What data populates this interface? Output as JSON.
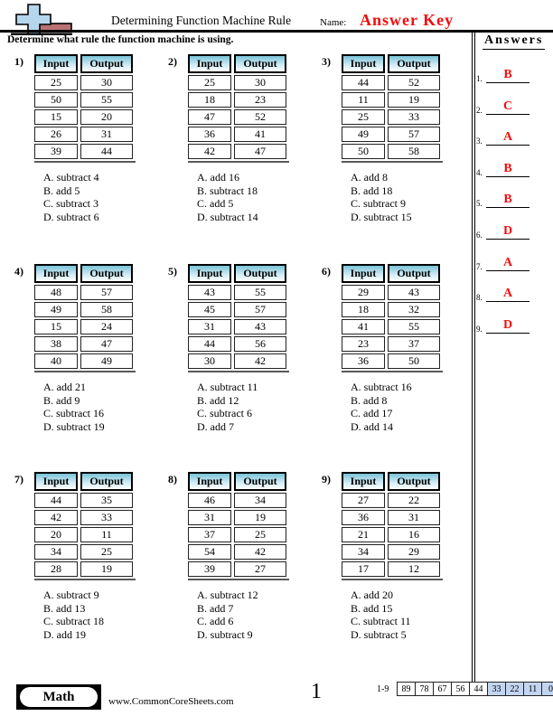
{
  "header": {
    "title": "Determining Function Machine Rule",
    "name_label": "Name:",
    "answer_key_label": "Answer Key",
    "instruction": "Determine what rule the function machine is using."
  },
  "answers_panel": {
    "title": "Answers",
    "items": [
      {
        "num": "1.",
        "letter": "B"
      },
      {
        "num": "2.",
        "letter": "C"
      },
      {
        "num": "3.",
        "letter": "A"
      },
      {
        "num": "4.",
        "letter": "B"
      },
      {
        "num": "5.",
        "letter": "B"
      },
      {
        "num": "6.",
        "letter": "D"
      },
      {
        "num": "7.",
        "letter": "A"
      },
      {
        "num": "8.",
        "letter": "A"
      },
      {
        "num": "9.",
        "letter": "D"
      }
    ]
  },
  "table_headers": [
    "Input",
    "Output"
  ],
  "problems": [
    {
      "num": "1)",
      "rows": [
        [
          "25",
          "30"
        ],
        [
          "50",
          "55"
        ],
        [
          "15",
          "20"
        ],
        [
          "26",
          "31"
        ],
        [
          "39",
          "44"
        ]
      ],
      "options": [
        "A. subtract 4",
        "B. add 5",
        "C. subtract 3",
        "D. subtract 6"
      ]
    },
    {
      "num": "2)",
      "rows": [
        [
          "25",
          "30"
        ],
        [
          "18",
          "23"
        ],
        [
          "47",
          "52"
        ],
        [
          "36",
          "41"
        ],
        [
          "42",
          "47"
        ]
      ],
      "options": [
        "A. add 16",
        "B. subtract 18",
        "C. add 5",
        "D. subtract 14"
      ]
    },
    {
      "num": "3)",
      "rows": [
        [
          "44",
          "52"
        ],
        [
          "11",
          "19"
        ],
        [
          "25",
          "33"
        ],
        [
          "49",
          "57"
        ],
        [
          "50",
          "58"
        ]
      ],
      "options": [
        "A. add 8",
        "B. add 18",
        "C. subtract 9",
        "D. subtract 15"
      ]
    },
    {
      "num": "4)",
      "rows": [
        [
          "48",
          "57"
        ],
        [
          "49",
          "58"
        ],
        [
          "15",
          "24"
        ],
        [
          "38",
          "47"
        ],
        [
          "40",
          "49"
        ]
      ],
      "options": [
        "A. add 21",
        "B. add 9",
        "C. subtract 16",
        "D. subtract 19"
      ]
    },
    {
      "num": "5)",
      "rows": [
        [
          "43",
          "55"
        ],
        [
          "45",
          "57"
        ],
        [
          "31",
          "43"
        ],
        [
          "44",
          "56"
        ],
        [
          "30",
          "42"
        ]
      ],
      "options": [
        "A. subtract 11",
        "B. add 12",
        "C. subtract 6",
        "D. add 7"
      ]
    },
    {
      "num": "6)",
      "rows": [
        [
          "29",
          "43"
        ],
        [
          "18",
          "32"
        ],
        [
          "41",
          "55"
        ],
        [
          "23",
          "37"
        ],
        [
          "36",
          "50"
        ]
      ],
      "options": [
        "A. subtract 16",
        "B. add 8",
        "C. add 17",
        "D. add 14"
      ]
    },
    {
      "num": "7)",
      "rows": [
        [
          "44",
          "35"
        ],
        [
          "42",
          "33"
        ],
        [
          "20",
          "11"
        ],
        [
          "34",
          "25"
        ],
        [
          "28",
          "19"
        ]
      ],
      "options": [
        "A. subtract 9",
        "B. add 13",
        "C. subtract 18",
        "D. add 19"
      ]
    },
    {
      "num": "8)",
      "rows": [
        [
          "46",
          "34"
        ],
        [
          "31",
          "19"
        ],
        [
          "37",
          "25"
        ],
        [
          "54",
          "42"
        ],
        [
          "39",
          "27"
        ]
      ],
      "options": [
        "A. subtract 12",
        "B. add 7",
        "C. add 6",
        "D. subtract 9"
      ]
    },
    {
      "num": "9)",
      "rows": [
        [
          "27",
          "22"
        ],
        [
          "36",
          "31"
        ],
        [
          "21",
          "16"
        ],
        [
          "34",
          "29"
        ],
        [
          "17",
          "12"
        ]
      ],
      "options": [
        "A. add 20",
        "B. add 15",
        "C. subtract 11",
        "D. subtract 5"
      ]
    }
  ],
  "footer": {
    "subject": "Math",
    "website": "www.CommonCoreSheets.com",
    "page": "1",
    "score_label": "1-9",
    "score_cells": [
      {
        "value": "89",
        "highlight": false
      },
      {
        "value": "78",
        "highlight": false
      },
      {
        "value": "67",
        "highlight": false
      },
      {
        "value": "56",
        "highlight": false
      },
      {
        "value": "44",
        "highlight": false
      },
      {
        "value": "33",
        "highlight": true
      },
      {
        "value": "22",
        "highlight": true
      },
      {
        "value": "11",
        "highlight": true
      },
      {
        "value": "0",
        "highlight": true
      }
    ]
  },
  "colors": {
    "accent_red": "#f30d0d",
    "table_header_top": "#79c3d9",
    "score_highlight": "#c3d4f0",
    "logo_cross": "#b5d7ee",
    "logo_block": "#b97272"
  }
}
